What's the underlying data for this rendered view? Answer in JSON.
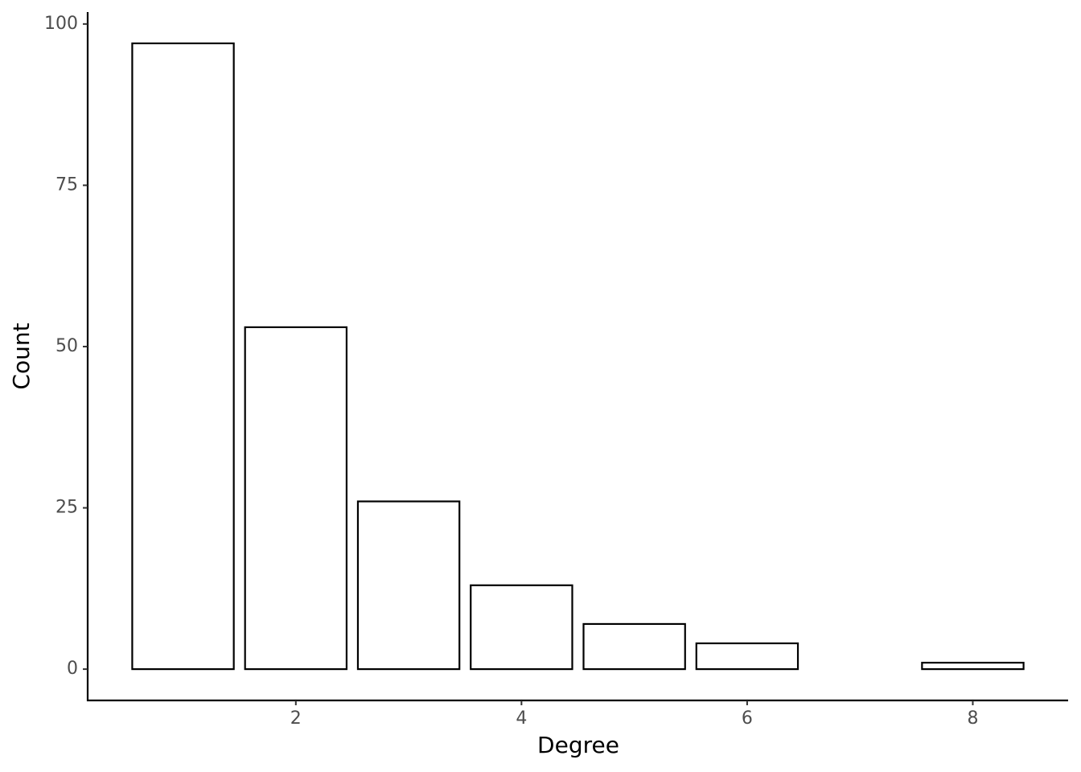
{
  "chart_data": {
    "type": "bar",
    "x": [
      1,
      2,
      3,
      4,
      5,
      6,
      8
    ],
    "values": [
      97,
      53,
      26,
      13,
      7,
      4,
      1
    ],
    "fill": "#ffffff",
    "color": "#000000",
    "xlabel": "Degree",
    "ylabel": "Count",
    "xlim": [
      0.155,
      8.845
    ],
    "xticks": [
      2,
      4,
      6,
      8
    ],
    "ylim": [
      -4.85,
      101.85
    ],
    "yticks": [
      0,
      25,
      50,
      75,
      100
    ],
    "grid": false
  }
}
